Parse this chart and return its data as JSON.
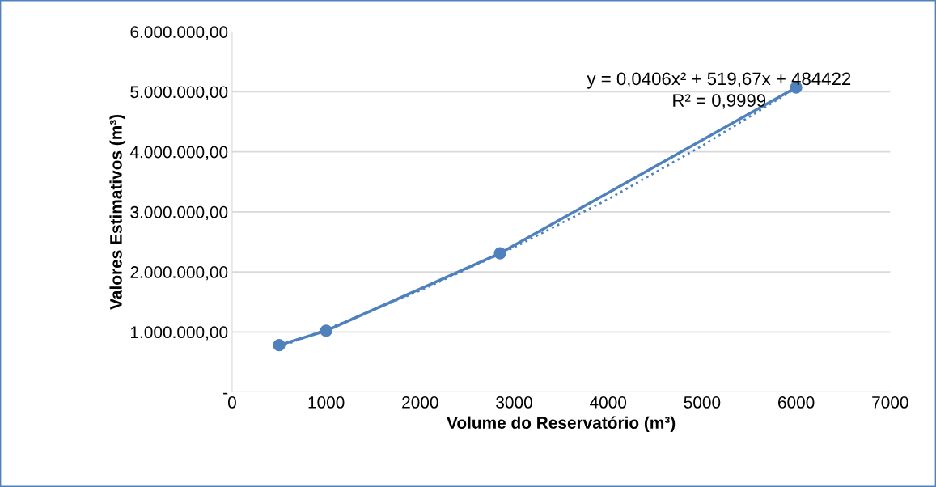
{
  "chart_data": {
    "type": "line",
    "xlabel": "Volume do Reservatório (m³)",
    "ylabel": "Valores Estimativos (m³)",
    "series": [
      {
        "color": "#4f81bd",
        "x": [
          500,
          1000,
          2850,
          6000
        ],
        "values": [
          780000,
          1020000,
          2310000,
          5070000
        ],
        "marker": "circle",
        "line_style": "solid"
      },
      {
        "type": "line",
        "color": "#4f81bd",
        "x": [
          500,
          1000,
          2000,
          3000,
          4000,
          5000,
          6000
        ],
        "values": [
          750000,
          1040000,
          1690000,
          2410000,
          3210000,
          4100000,
          5060000
        ],
        "marker": "none",
        "line_style": "dotted"
      }
    ],
    "xlim": [
      0,
      7000
    ],
    "xticks": [
      0,
      1000,
      2000,
      3000,
      4000,
      5000,
      6000,
      7000
    ],
    "ylim": [
      0,
      6000000
    ],
    "yticks": [
      {
        "value": 0,
        "label": "-"
      },
      {
        "value": 1000000,
        "label": "1.000.000,00"
      },
      {
        "value": 2000000,
        "label": "2.000.000,00"
      },
      {
        "value": 3000000,
        "label": "3.000.000,00"
      },
      {
        "value": 4000000,
        "label": "4.000.000,00"
      },
      {
        "value": 5000000,
        "label": "5.000.000,00"
      },
      {
        "value": 6000000,
        "label": "6.000.000,00"
      }
    ],
    "grid": "y",
    "legend": false,
    "annotations": [
      "y = 0,0406x² + 519,67x + 484422",
      "R² = 0,9999"
    ]
  }
}
